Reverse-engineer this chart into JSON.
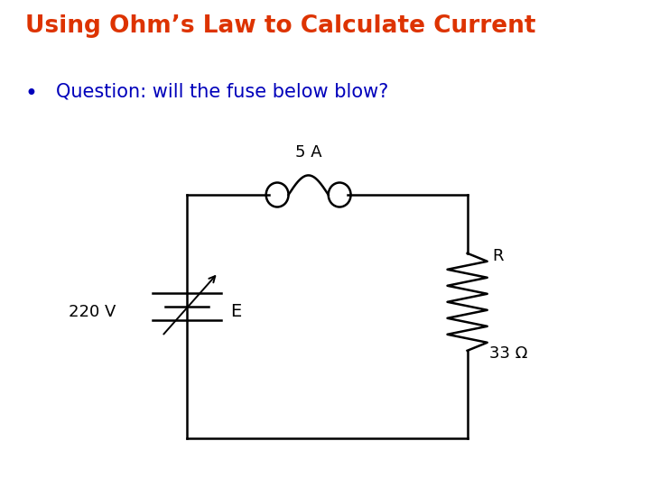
{
  "title": "Using Ohm’s Law to Calculate Current",
  "title_color": "#DD3300",
  "title_fontsize": 19,
  "bullet_text": "Question: will the fuse below blow?",
  "bullet_color": "#0000BB",
  "bullet_fontsize": 15,
  "voltage_label": "220 V",
  "battery_label": "E",
  "fuse_label": "5 A",
  "resistor_label": "R",
  "resistance_label": "33 Ω",
  "background_color": "#ffffff",
  "circuit_color": "#000000",
  "cl": 0.3,
  "cr": 0.75,
  "ct": 0.6,
  "cb": 0.1
}
